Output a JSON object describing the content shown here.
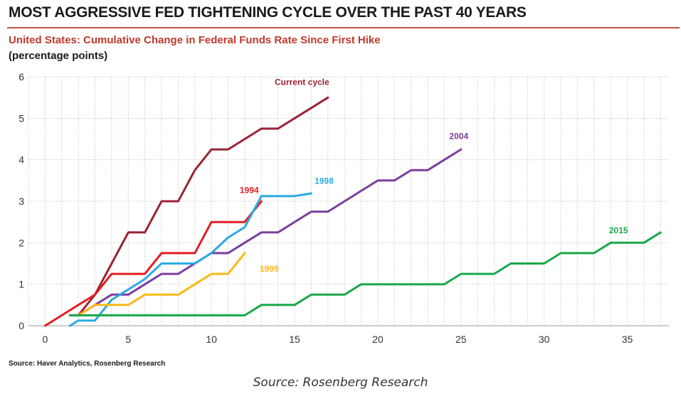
{
  "title": "MOST AGGRESSIVE FED TIGHTENING CYCLE OVER THE PAST 40 YEARS",
  "subtitle": "United States: Cumulative Change in Federal Funds Rate Since First Hike",
  "unit_note": "(percentage points)",
  "source_note": "Source: Haver Analytics, Rosenberg Research",
  "caption": "Source: Rosenberg Research",
  "chart_data": {
    "type": "line",
    "xlim": [
      -1,
      37.5
    ],
    "ylim": [
      0,
      6
    ],
    "x_ticks": [
      0,
      5,
      10,
      15,
      20,
      25,
      30,
      35
    ],
    "y_ticks": [
      0,
      1,
      2,
      3,
      4,
      5,
      6
    ],
    "grid": true,
    "series": [
      {
        "name": "Current cycle",
        "color": "#9b2335",
        "label_at": [
          13.8,
          5.8
        ],
        "points": [
          [
            1.5,
            0.25
          ],
          [
            2,
            0.25
          ],
          [
            3,
            0.75
          ],
          [
            4,
            1.5
          ],
          [
            5,
            2.25
          ],
          [
            6,
            2.25
          ],
          [
            7,
            3.0
          ],
          [
            8,
            3.0
          ],
          [
            9,
            3.75
          ],
          [
            10,
            4.25
          ],
          [
            11,
            4.25
          ],
          [
            12,
            4.5
          ],
          [
            13,
            4.75
          ],
          [
            14,
            4.75
          ],
          [
            15,
            5.0
          ],
          [
            16,
            5.25
          ],
          [
            17,
            5.5
          ]
        ]
      },
      {
        "name": "2004",
        "color": "#7b3fa0",
        "label_at": [
          24.3,
          4.5
        ],
        "points": [
          [
            1.5,
            0.25
          ],
          [
            2,
            0.25
          ],
          [
            3,
            0.5
          ],
          [
            4,
            0.75
          ],
          [
            5,
            0.75
          ],
          [
            6,
            1.0
          ],
          [
            7,
            1.25
          ],
          [
            8,
            1.25
          ],
          [
            9,
            1.5
          ],
          [
            10,
            1.75
          ],
          [
            11,
            1.75
          ],
          [
            12,
            2.0
          ],
          [
            13,
            2.25
          ],
          [
            14,
            2.25
          ],
          [
            15,
            2.5
          ],
          [
            16,
            2.75
          ],
          [
            17,
            2.75
          ],
          [
            18,
            3.0
          ],
          [
            19,
            3.25
          ],
          [
            20,
            3.5
          ],
          [
            21,
            3.5
          ],
          [
            22,
            3.75
          ],
          [
            23,
            3.75
          ],
          [
            24,
            4.0
          ],
          [
            25,
            4.25
          ]
        ]
      },
      {
        "name": "1994",
        "color": "#e31e24",
        "label_at": [
          11.7,
          3.2
        ],
        "points": [
          [
            0,
            0.0
          ],
          [
            1,
            0.25
          ],
          [
            2,
            0.5
          ],
          [
            3,
            0.75
          ],
          [
            4,
            1.25
          ],
          [
            5,
            1.25
          ],
          [
            6,
            1.25
          ],
          [
            7,
            1.75
          ],
          [
            8,
            1.75
          ],
          [
            9,
            1.75
          ],
          [
            10,
            2.5
          ],
          [
            11,
            2.5
          ],
          [
            12,
            2.5
          ],
          [
            13,
            3.0
          ]
        ]
      },
      {
        "name": "1998",
        "color": "#29abe2",
        "label_at": [
          16.2,
          3.42
        ],
        "points": [
          [
            1.5,
            0.0
          ],
          [
            2,
            0.125
          ],
          [
            3,
            0.125
          ],
          [
            4,
            0.625
          ],
          [
            5,
            0.875
          ],
          [
            6,
            1.125
          ],
          [
            7,
            1.5
          ],
          [
            8,
            1.5
          ],
          [
            9,
            1.5
          ],
          [
            10,
            1.75
          ],
          [
            11,
            2.125
          ],
          [
            12,
            2.375
          ],
          [
            13,
            3.125
          ],
          [
            14,
            3.125
          ],
          [
            15,
            3.125
          ],
          [
            16,
            3.188
          ]
        ]
      },
      {
        "name": "1999",
        "color": "#fbb917",
        "label_at": [
          12.9,
          1.3
        ],
        "points": [
          [
            1.5,
            0.25
          ],
          [
            2,
            0.25
          ],
          [
            3,
            0.5
          ],
          [
            4,
            0.5
          ],
          [
            5,
            0.5
          ],
          [
            6,
            0.75
          ],
          [
            7,
            0.75
          ],
          [
            8,
            0.75
          ],
          [
            9,
            1.0
          ],
          [
            10,
            1.25
          ],
          [
            11,
            1.25
          ],
          [
            12,
            1.75
          ]
        ]
      },
      {
        "name": "2015",
        "color": "#1aa74b",
        "label_at": [
          33.9,
          2.23
        ],
        "points": [
          [
            1.5,
            0.25
          ],
          [
            12,
            0.25
          ],
          [
            13,
            0.5
          ],
          [
            15,
            0.5
          ],
          [
            16,
            0.75
          ],
          [
            18,
            0.75
          ],
          [
            19,
            1.0
          ],
          [
            24,
            1.0
          ],
          [
            25,
            1.25
          ],
          [
            27,
            1.25
          ],
          [
            28,
            1.5
          ],
          [
            30,
            1.5
          ],
          [
            31,
            1.75
          ],
          [
            33,
            1.75
          ],
          [
            34,
            2.0
          ],
          [
            36,
            2.0
          ],
          [
            37,
            2.25
          ]
        ]
      }
    ]
  }
}
